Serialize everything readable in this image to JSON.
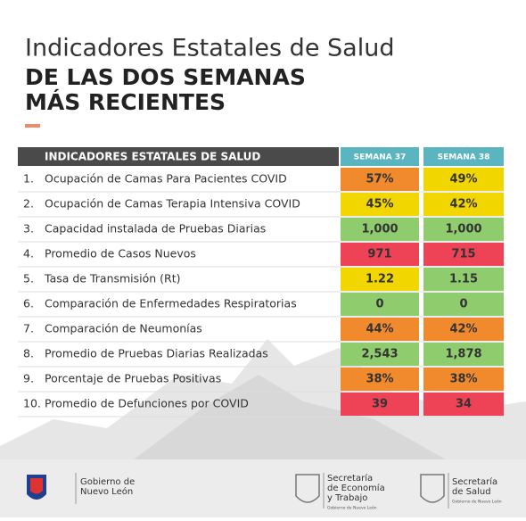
{
  "header": {
    "title": "Indicadores Estatales de Salud",
    "subtitle": [
      "DE LAS DOS SEMANAS",
      "MÁS RECIENTES"
    ]
  },
  "table": {
    "headers": [
      "INDICADORES ESTATALES DE SALUD",
      "SEMANA 37",
      "SEMANA 38"
    ],
    "rows": [
      {
        "number": "1.",
        "label": "Ocupación de Camas Para Pacientes COVID",
        "cells": [
          {
            "text": "57%",
            "color": "#f08a2c"
          },
          {
            "text": "49%",
            "color": "#f2d600"
          }
        ]
      },
      {
        "number": "2.",
        "label": "Ocupación de Camas Terapia Intensiva COVID",
        "cells": [
          {
            "text": "45%",
            "color": "#f2d600"
          },
          {
            "text": "42%",
            "color": "#f2d600"
          }
        ]
      },
      {
        "number": "3.",
        "label": "Capacidad instalada de Pruebas Diarias",
        "cells": [
          {
            "text": "1,000",
            "color": "#8fcc6e"
          },
          {
            "text": "1,000",
            "color": "#8fcc6e"
          }
        ]
      },
      {
        "number": "4.",
        "label": "Promedio de Casos Nuevos",
        "cells": [
          {
            "text": "971",
            "color": "#ee4257"
          },
          {
            "text": "715",
            "color": "#ee4257"
          }
        ]
      },
      {
        "number": "5.",
        "label": "Tasa de Transmisión (Rt)",
        "cells": [
          {
            "text": "1.22",
            "color": "#f2d600"
          },
          {
            "text": "1.15",
            "color": "#8fcc6e"
          }
        ]
      },
      {
        "number": "6.",
        "label": "Comparación de Enfermedades Respiratorias",
        "cells": [
          {
            "text": "0",
            "color": "#8fcc6e"
          },
          {
            "text": "0",
            "color": "#8fcc6e"
          }
        ]
      },
      {
        "number": "7.",
        "label": "Comparación de Neumonías",
        "cells": [
          {
            "text": "44%",
            "color": "#f08a2c"
          },
          {
            "text": "42%",
            "color": "#f08a2c"
          }
        ]
      },
      {
        "number": "8.",
        "label": "Promedio de Pruebas Diarias Realizadas",
        "cells": [
          {
            "text": "2,543",
            "color": "#8fcc6e"
          },
          {
            "text": "1,878",
            "color": "#8fcc6e"
          }
        ]
      },
      {
        "number": "9.",
        "label": "Porcentaje de Pruebas Positivas",
        "cells": [
          {
            "text": "38%",
            "color": "#f08a2c"
          },
          {
            "text": "38%",
            "color": "#f08a2c"
          }
        ]
      },
      {
        "number": "10.",
        "label": "Promedio de Defunciones por COVID",
        "cells": [
          {
            "text": "39",
            "color": "#ee4257"
          },
          {
            "text": "34",
            "color": "#ee4257"
          }
        ]
      }
    ]
  },
  "footer": {
    "logos": [
      {
        "lines": [
          "Gobierno de",
          "Nuevo León"
        ]
      },
      {
        "lines": [
          "Secretaría",
          "de Economía",
          "y Trabajo"
        ],
        "small": "Gobierno de Nuevo León"
      },
      {
        "lines": [
          "Secretaría",
          "de Salud"
        ],
        "small": "Gobierno de Nuevo León"
      }
    ]
  }
}
